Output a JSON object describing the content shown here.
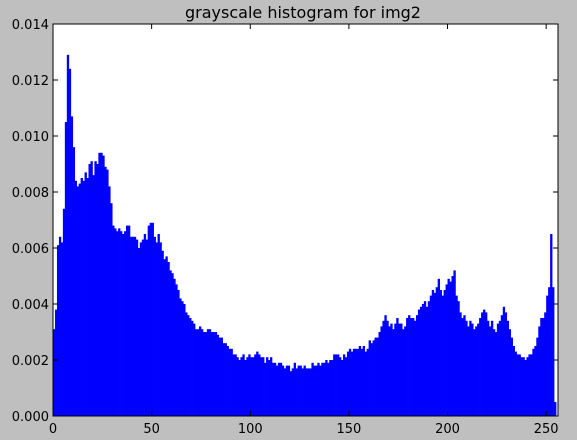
{
  "colors": {
    "figure_background": "#bfbfbf",
    "plot_background": "#ffffff",
    "bar_color": "#0000ff",
    "axis_color": "#000000"
  },
  "chart_data": {
    "type": "bar",
    "title": "grayscale histogram for img2",
    "xlabel": "",
    "ylabel": "",
    "xlim": [
      0,
      256
    ],
    "ylim": [
      0,
      0.014
    ],
    "xticks": [
      "0",
      "50",
      "100",
      "150",
      "200",
      "250"
    ],
    "xtick_values": [
      0,
      50,
      100,
      150,
      200,
      250
    ],
    "yticks": [
      "0.000",
      "0.002",
      "0.004",
      "0.006",
      "0.008",
      "0.010",
      "0.012",
      "0.014"
    ],
    "ytick_values": [
      0,
      0.002,
      0.004,
      0.006,
      0.008,
      0.01,
      0.012,
      0.014
    ],
    "grid": false,
    "legend": "none",
    "bin_start": 0,
    "bin_width": 1,
    "values": [
      0.0031,
      0.0038,
      0.0061,
      0.0064,
      0.0062,
      0.0074,
      0.0105,
      0.0129,
      0.0124,
      0.0107,
      0.0096,
      0.0084,
      0.0082,
      0.0083,
      0.0085,
      0.0084,
      0.0087,
      0.0085,
      0.009,
      0.0091,
      0.0086,
      0.0091,
      0.009,
      0.0094,
      0.0094,
      0.0093,
      0.0089,
      0.0088,
      0.0082,
      0.0076,
      0.0068,
      0.0067,
      0.0066,
      0.0067,
      0.0066,
      0.0065,
      0.0066,
      0.0068,
      0.0068,
      0.0064,
      0.0064,
      0.0064,
      0.0063,
      0.006,
      0.0062,
      0.0063,
      0.0065,
      0.0063,
      0.0068,
      0.0069,
      0.0069,
      0.0064,
      0.0062,
      0.0065,
      0.0062,
      0.0059,
      0.0056,
      0.0057,
      0.0055,
      0.0052,
      0.0051,
      0.0049,
      0.0047,
      0.0045,
      0.0042,
      0.0041,
      0.004,
      0.0037,
      0.0036,
      0.0035,
      0.0034,
      0.0033,
      0.0031,
      0.0031,
      0.0032,
      0.0031,
      0.003,
      0.003,
      0.0031,
      0.0031,
      0.003,
      0.003,
      0.003,
      0.0029,
      0.0028,
      0.0028,
      0.0026,
      0.0026,
      0.0025,
      0.0024,
      0.0024,
      0.0022,
      0.0022,
      0.0021,
      0.002,
      0.0021,
      0.0022,
      0.002,
      0.0021,
      0.0022,
      0.0021,
      0.0021,
      0.0022,
      0.0023,
      0.0022,
      0.0021,
      0.0021,
      0.0019,
      0.0021,
      0.002,
      0.0021,
      0.0019,
      0.0019,
      0.0018,
      0.0019,
      0.0019,
      0.0018,
      0.0017,
      0.0018,
      0.0018,
      0.0016,
      0.0017,
      0.0019,
      0.0017,
      0.0018,
      0.0018,
      0.0017,
      0.0018,
      0.0017,
      0.0017,
      0.0017,
      0.0019,
      0.0018,
      0.0018,
      0.0019,
      0.0018,
      0.0019,
      0.0019,
      0.002,
      0.0019,
      0.002,
      0.002,
      0.0022,
      0.0022,
      0.0022,
      0.0021,
      0.002,
      0.0022,
      0.0021,
      0.0023,
      0.0024,
      0.0023,
      0.0024,
      0.0024,
      0.0024,
      0.0025,
      0.0024,
      0.0025,
      0.0023,
      0.0024,
      0.0027,
      0.0026,
      0.0027,
      0.0028,
      0.0028,
      0.003,
      0.0032,
      0.0034,
      0.0036,
      0.0034,
      0.0032,
      0.0033,
      0.0031,
      0.0033,
      0.0035,
      0.0033,
      0.0033,
      0.0031,
      0.0032,
      0.0035,
      0.0036,
      0.0035,
      0.0035,
      0.0034,
      0.0036,
      0.0038,
      0.0039,
      0.004,
      0.0041,
      0.0039,
      0.0041,
      0.0043,
      0.0045,
      0.0044,
      0.0046,
      0.0049,
      0.0045,
      0.0043,
      0.0045,
      0.0047,
      0.0049,
      0.0048,
      0.005,
      0.0052,
      0.0043,
      0.0041,
      0.0037,
      0.0035,
      0.0036,
      0.0034,
      0.0032,
      0.0034,
      0.0033,
      0.0031,
      0.0032,
      0.0033,
      0.0035,
      0.0037,
      0.0038,
      0.0037,
      0.0034,
      0.0032,
      0.0034,
      0.0031,
      0.003,
      0.0033,
      0.0034,
      0.0036,
      0.0039,
      0.0037,
      0.0034,
      0.0031,
      0.0028,
      0.0025,
      0.0023,
      0.0022,
      0.0022,
      0.0021,
      0.0021,
      0.002,
      0.0021,
      0.0022,
      0.0022,
      0.0024,
      0.0025,
      0.0028,
      0.0032,
      0.0035,
      0.0035,
      0.0037,
      0.0043,
      0.0046,
      0.0065,
      0.0046,
      0.0005
    ]
  }
}
